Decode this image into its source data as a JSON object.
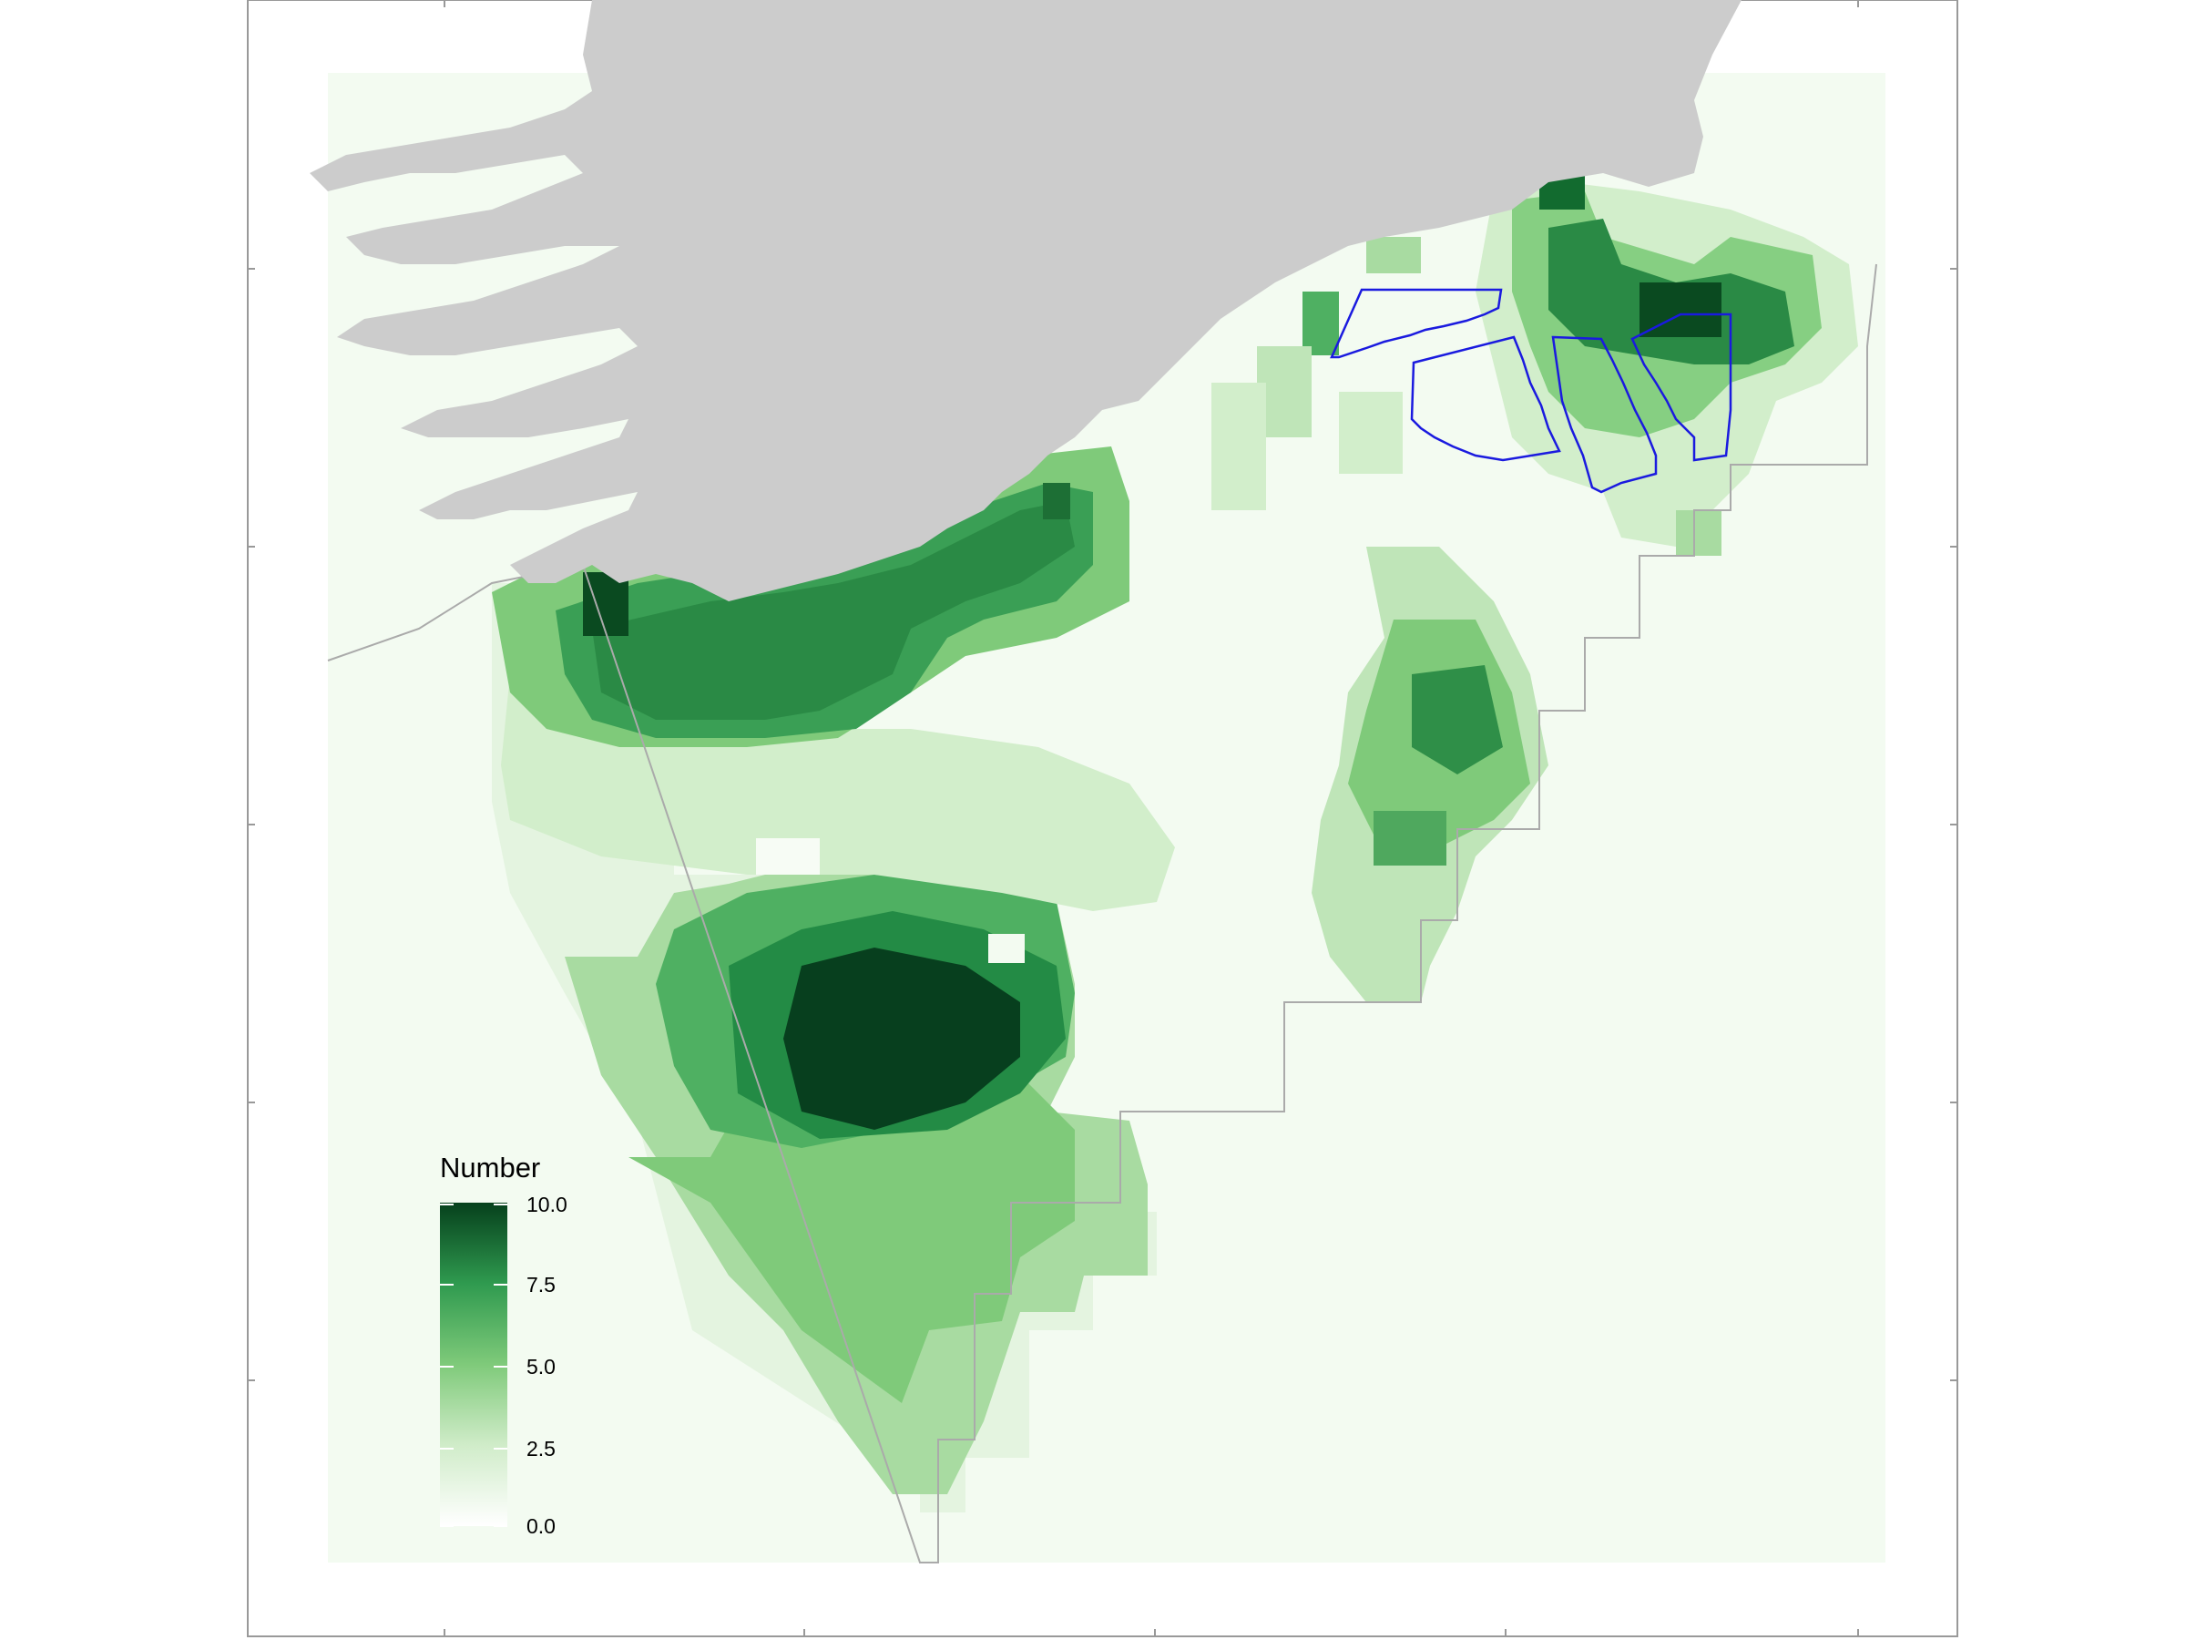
{
  "map": {
    "legend": {
      "title": "Number",
      "min": 0,
      "max": 10,
      "ticks": [
        "0.0",
        "2.5",
        "5.0",
        "7.5",
        "10.0"
      ],
      "tick_values": [
        0,
        2.5,
        5,
        7.5,
        10
      ],
      "colors": [
        "#f7fcf5",
        "#c7e9c0",
        "#74c476",
        "#238b45",
        "#00441b"
      ]
    },
    "colors": {
      "land": "#cccccc",
      "sea_fill": "#f3fbf1",
      "study_boundary": "#aaaaaa",
      "lease_area_outline": "#1a1adf",
      "frame": "#999999"
    }
  }
}
